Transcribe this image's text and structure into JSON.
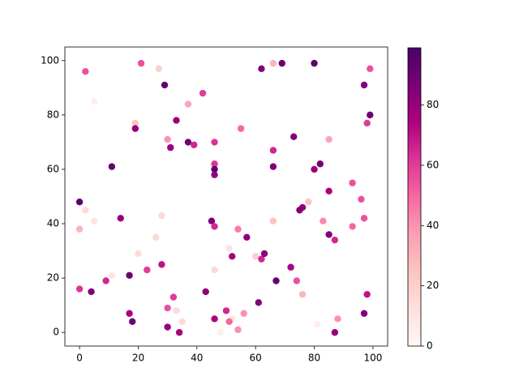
{
  "chart_data": {
    "type": "scatter",
    "x": [
      0,
      2,
      5,
      19,
      19,
      21,
      27,
      29,
      33,
      37,
      42,
      30,
      31,
      37,
      39,
      46,
      46,
      46,
      46,
      55,
      66,
      62,
      69,
      80,
      97,
      99,
      99,
      98,
      73,
      85,
      66,
      66,
      82,
      80,
      11,
      93,
      85,
      96,
      78,
      76,
      75,
      2,
      5,
      14,
      28,
      45,
      46,
      66,
      97,
      83,
      93,
      0,
      54,
      57,
      26,
      85,
      87,
      20,
      51,
      52,
      60,
      62,
      63,
      46,
      23,
      28,
      72,
      11,
      17,
      9,
      67,
      74,
      0,
      4,
      43,
      76,
      98,
      32,
      61,
      30,
      33,
      50,
      17,
      56,
      97,
      52,
      46,
      88,
      35,
      51,
      18,
      81,
      30,
      54,
      34,
      48,
      87
    ],
    "y": [
      48,
      96,
      85,
      77,
      75,
      99,
      97,
      91,
      78,
      84,
      88,
      71,
      68,
      70,
      69,
      70,
      62,
      60,
      58,
      75,
      99,
      97,
      99,
      99,
      91,
      97,
      80,
      77,
      72,
      71,
      67,
      61,
      62,
      60,
      61,
      55,
      52,
      49,
      48,
      46,
      45,
      45,
      41,
      42,
      43,
      41,
      39,
      41,
      42,
      41,
      39,
      38,
      38,
      35,
      35,
      36,
      34,
      29,
      31,
      28,
      28,
      27,
      29,
      23,
      23,
      25,
      24,
      21,
      21,
      19,
      19,
      19,
      16,
      15,
      15,
      14,
      14,
      13,
      11,
      9,
      8,
      8,
      7,
      7,
      7,
      5,
      5,
      5,
      4,
      4,
      4,
      3,
      2,
      1,
      0,
      0,
      0
    ],
    "c": [
      95,
      55,
      5,
      25,
      80,
      55,
      20,
      92,
      80,
      35,
      60,
      40,
      78,
      90,
      65,
      62,
      62,
      95,
      80,
      50,
      30,
      85,
      90,
      95,
      85,
      55,
      90,
      60,
      85,
      35,
      65,
      85,
      88,
      78,
      92,
      55,
      75,
      55,
      25,
      82,
      85,
      15,
      10,
      80,
      15,
      85,
      65,
      25,
      55,
      42,
      50,
      30,
      45,
      82,
      15,
      85,
      65,
      15,
      10,
      75,
      20,
      65,
      82,
      15,
      60,
      70,
      75,
      10,
      90,
      65,
      92,
      55,
      62,
      85,
      82,
      30,
      70,
      60,
      85,
      55,
      15,
      65,
      75,
      40,
      85,
      10,
      75,
      40,
      15,
      50,
      90,
      5,
      80,
      40,
      75,
      5,
      80
    ],
    "colormap": "RdPu",
    "xlim": [
      -5,
      105
    ],
    "ylim": [
      -5,
      105
    ],
    "xticks": [
      0,
      20,
      40,
      60,
      80,
      100
    ],
    "yticks": [
      0,
      20,
      40,
      60,
      80,
      100
    ],
    "clim": [
      0,
      99
    ],
    "cticks": [
      0,
      20,
      40,
      60,
      80
    ]
  }
}
